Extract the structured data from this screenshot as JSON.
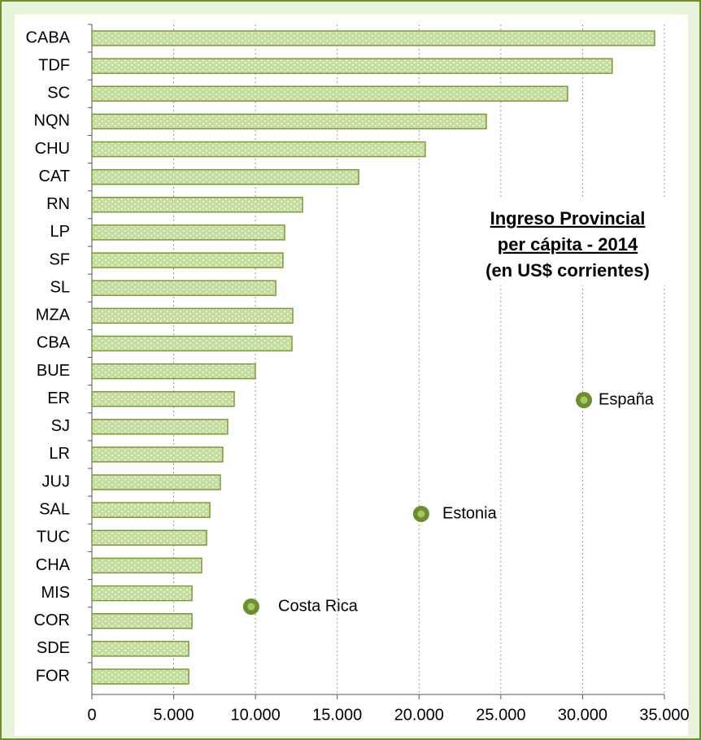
{
  "chart_data": {
    "type": "bar",
    "orientation": "horizontal",
    "title": [
      "Ingreso Provincial",
      "per cápita - 2014",
      "(en US$ corrientes)"
    ],
    "categories": [
      "CABA",
      "TDF",
      "SC",
      "NQN",
      "CHU",
      "CAT",
      "RN",
      "LP",
      "SF",
      "SL",
      "MZA",
      "CBA",
      "BUE",
      "ER",
      "SJ",
      "LR",
      "JUJ",
      "SAL",
      "TUC",
      "CHA",
      "MIS",
      "COR",
      "SDE",
      "FOR"
    ],
    "values": [
      34400,
      31810,
      29080,
      24110,
      20380,
      16310,
      12880,
      11780,
      11680,
      11240,
      12280,
      12230,
      9990,
      8700,
      8300,
      8000,
      7850,
      7210,
      7010,
      6710,
      6120,
      6120,
      5920,
      5920
    ],
    "color": "#c6dda0",
    "points": [
      {
        "name": "España",
        "value": 30080
      },
      {
        "name": "Estonia",
        "value": 20130
      },
      {
        "name": "Costa Rica",
        "value": 9740
      }
    ],
    "point_color": "#6b8f2c",
    "xlim": [
      0,
      35000
    ],
    "xticks": [
      0,
      {
        "value": 5000,
        "label": "5.000"
      },
      {
        "value": 10000,
        "label": "10.000"
      },
      {
        "value": 15000,
        "label": "15.000"
      },
      {
        "value": 20000,
        "label": "20.000"
      },
      {
        "value": 25000,
        "label": "25.000"
      },
      {
        "value": 30000,
        "label": "30.000"
      },
      {
        "value": 35000,
        "label": "35.000"
      }
    ],
    "grid": true
  }
}
